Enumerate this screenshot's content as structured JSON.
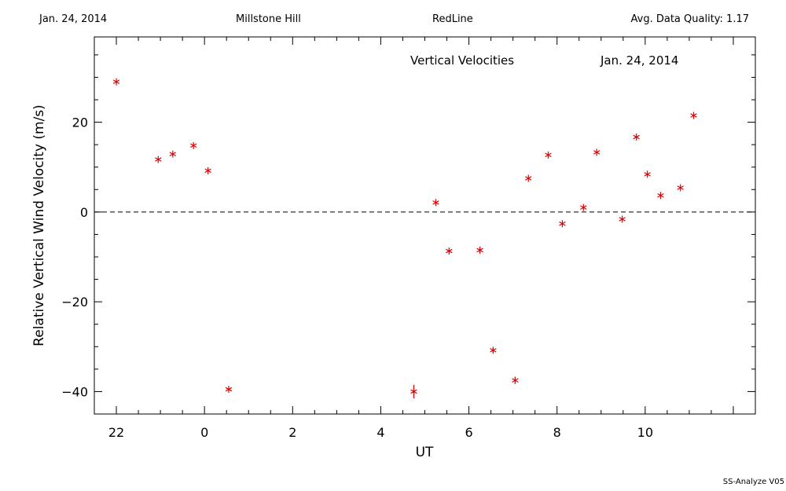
{
  "header": {
    "date": "Jan. 24, 2014",
    "site": "Millstone Hill",
    "line": "RedLine",
    "quality": "Avg. Data Quality: 1.17"
  },
  "footer": "SS-Analyze V05",
  "colors": {
    "marker": "#e00000",
    "axis": "#000000"
  },
  "chart_data": {
    "type": "scatter",
    "title": "Vertical Velocities",
    "subtitle": "Jan. 24, 2014",
    "xlabel": "UT",
    "ylabel": "Relative Vertical Wind Velocity (m/s)",
    "xlim": [
      -2.5,
      12.5
    ],
    "ylim": [
      -45,
      39
    ],
    "x_ticks": [
      22,
      0,
      2,
      4,
      6,
      8,
      10
    ],
    "x_tick_positions": [
      -2,
      0,
      2,
      4,
      6,
      8,
      10
    ],
    "y_ticks": [
      -40,
      -20,
      0,
      20
    ],
    "zero_line": "dashed",
    "grid": false,
    "series": [
      {
        "x": [
          -2.0,
          -1.05,
          -0.72,
          -0.25,
          0.08,
          0.55,
          4.75,
          5.25,
          5.55,
          6.25,
          6.55,
          7.05,
          7.35,
          7.8,
          8.12,
          8.6,
          8.9,
          9.48,
          9.8,
          10.05,
          10.35,
          10.8,
          11.1
        ],
        "y": [
          29.0,
          11.7,
          12.9,
          14.8,
          9.2,
          -39.5,
          -40.0,
          2.1,
          -8.7,
          -8.5,
          -30.8,
          -37.5,
          7.5,
          12.7,
          -2.6,
          1.0,
          13.3,
          -1.6,
          16.7,
          8.4,
          3.7,
          5.4,
          21.5
        ],
        "error": [
          0,
          0,
          0,
          0,
          0,
          0,
          1.5,
          0,
          0,
          0,
          0.6,
          0.8,
          0,
          0,
          0,
          0,
          0,
          0,
          0,
          0,
          0,
          0,
          0
        ]
      }
    ]
  }
}
